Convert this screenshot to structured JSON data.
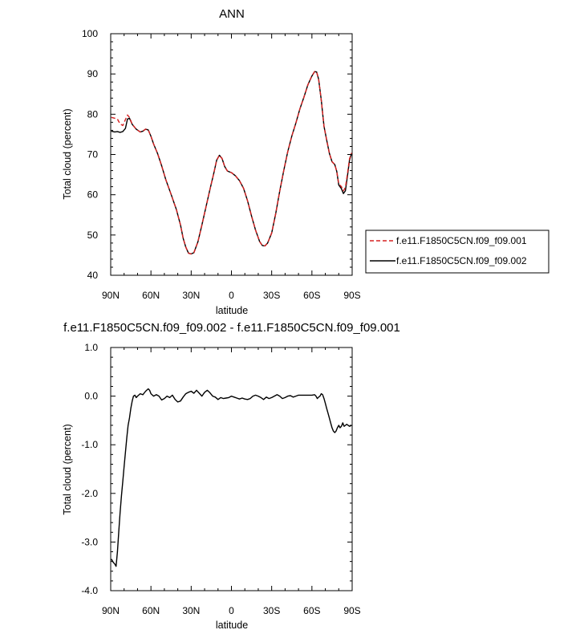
{
  "chart_data": [
    {
      "type": "line",
      "title": "ANN",
      "xlabel": "latitude",
      "ylabel": "Total cloud (percent)",
      "xlim": [
        90,
        -90
      ],
      "ylim": [
        40,
        100
      ],
      "x_ticks": [
        90,
        60,
        30,
        0,
        -30,
        -60,
        -90
      ],
      "x_tick_labels": [
        "90N",
        "60N",
        "30N",
        "0",
        "30S",
        "60S",
        "90S"
      ],
      "y_ticks": [
        40,
        50,
        60,
        70,
        80,
        90,
        100
      ],
      "y_tick_labels": [
        "40",
        "50",
        "60",
        "70",
        "80",
        "90",
        "100"
      ],
      "legend_position": "right",
      "series": [
        {
          "name": "f.e11.F1850C5CN.f09_f09.001",
          "color": "#d62020",
          "dash": "dashed",
          "points": [
            [
              89.5,
              79.2
            ],
            [
              87,
              79.0
            ],
            [
              85,
              78.8
            ],
            [
              83,
              77.6
            ],
            [
              81,
              77.2
            ],
            [
              79,
              78.7
            ],
            [
              77.5,
              79.8
            ],
            [
              76,
              79.2
            ],
            [
              74,
              77.5
            ],
            [
              71,
              76.3
            ],
            [
              68,
              75.6
            ],
            [
              66,
              75.8
            ],
            [
              64,
              76.3
            ],
            [
              62,
              76.1
            ],
            [
              60,
              74.5
            ],
            [
              58,
              72.6
            ],
            [
              55,
              70.2
            ],
            [
              52,
              67.2
            ],
            [
              49,
              63.8
            ],
            [
              45,
              60.1
            ],
            [
              41,
              56.3
            ],
            [
              38,
              52.5
            ],
            [
              36,
              49.2
            ],
            [
              34,
              47.0
            ],
            [
              32,
              45.5
            ],
            [
              30,
              45.3
            ],
            [
              28,
              45.6
            ],
            [
              25,
              48.3
            ],
            [
              22,
              52.5
            ],
            [
              19,
              56.9
            ],
            [
              16,
              61.3
            ],
            [
              13,
              65.6
            ],
            [
              11,
              68.6
            ],
            [
              9,
              69.8
            ],
            [
              7,
              69.0
            ],
            [
              5,
              67.0
            ],
            [
              3,
              65.9
            ],
            [
              0,
              65.5
            ],
            [
              -3,
              64.7
            ],
            [
              -6,
              63.5
            ],
            [
              -9,
              61.6
            ],
            [
              -12,
              58.5
            ],
            [
              -15,
              54.7
            ],
            [
              -18,
              51.2
            ],
            [
              -21,
              48.4
            ],
            [
              -23,
              47.4
            ],
            [
              -25,
              47.3
            ],
            [
              -27,
              48.0
            ],
            [
              -30,
              50.5
            ],
            [
              -33,
              55.3
            ],
            [
              -36,
              60.9
            ],
            [
              -39,
              66.0
            ],
            [
              -42,
              70.7
            ],
            [
              -45,
              74.6
            ],
            [
              -48,
              77.8
            ],
            [
              -51,
              81.3
            ],
            [
              -54,
              84.2
            ],
            [
              -57,
              87.3
            ],
            [
              -60,
              89.5
            ],
            [
              -62,
              90.6
            ],
            [
              -63.5,
              90.5
            ],
            [
              -65,
              88.7
            ],
            [
              -67,
              83.5
            ],
            [
              -69,
              77.0
            ],
            [
              -71,
              73.6
            ],
            [
              -73,
              70.3
            ],
            [
              -75,
              68.2
            ],
            [
              -77,
              67.5
            ],
            [
              -78.5,
              65.8
            ],
            [
              -80,
              62.7
            ],
            [
              -82,
              62.0
            ],
            [
              -83.5,
              61.0
            ],
            [
              -85,
              61.8
            ],
            [
              -86.5,
              65.2
            ],
            [
              -88,
              68.9
            ],
            [
              -89.5,
              70.4
            ]
          ]
        },
        {
          "name": "f.e11.F1850C5CN.f09_f09.002",
          "color": "#000000",
          "dash": "solid",
          "points": [
            [
              89.5,
              75.8
            ],
            [
              87,
              75.6
            ],
            [
              85,
              75.7
            ],
            [
              83,
              75.5
            ],
            [
              81,
              75.7
            ],
            [
              79,
              76.5
            ],
            [
              77.5,
              78.8
            ],
            [
              76,
              79.0
            ],
            [
              74,
              77.5
            ],
            [
              71,
              76.3
            ],
            [
              68,
              75.6
            ],
            [
              66,
              75.8
            ],
            [
              64,
              76.3
            ],
            [
              62,
              76.1
            ],
            [
              60,
              74.5
            ],
            [
              58,
              72.6
            ],
            [
              55,
              70.2
            ],
            [
              52,
              67.2
            ],
            [
              49,
              63.8
            ],
            [
              45,
              60.1
            ],
            [
              41,
              56.3
            ],
            [
              38,
              52.5
            ],
            [
              36,
              49.2
            ],
            [
              34,
              47.0
            ],
            [
              32,
              45.5
            ],
            [
              30,
              45.3
            ],
            [
              28,
              45.6
            ],
            [
              25,
              48.3
            ],
            [
              22,
              52.5
            ],
            [
              19,
              56.9
            ],
            [
              16,
              61.3
            ],
            [
              13,
              65.6
            ],
            [
              11,
              68.6
            ],
            [
              9,
              69.8
            ],
            [
              7,
              69.0
            ],
            [
              5,
              67.0
            ],
            [
              3,
              65.9
            ],
            [
              0,
              65.5
            ],
            [
              -3,
              64.7
            ],
            [
              -6,
              63.5
            ],
            [
              -9,
              61.6
            ],
            [
              -12,
              58.5
            ],
            [
              -15,
              54.7
            ],
            [
              -18,
              51.2
            ],
            [
              -21,
              48.4
            ],
            [
              -23,
              47.4
            ],
            [
              -25,
              47.3
            ],
            [
              -27,
              48.0
            ],
            [
              -30,
              50.5
            ],
            [
              -33,
              55.3
            ],
            [
              -36,
              60.9
            ],
            [
              -39,
              66.0
            ],
            [
              -42,
              70.7
            ],
            [
              -45,
              74.6
            ],
            [
              -48,
              77.8
            ],
            [
              -51,
              81.3
            ],
            [
              -54,
              84.2
            ],
            [
              -57,
              87.3
            ],
            [
              -60,
              89.5
            ],
            [
              -62,
              90.6
            ],
            [
              -63.5,
              90.5
            ],
            [
              -65,
              88.7
            ],
            [
              -67,
              83.5
            ],
            [
              -69,
              77.0
            ],
            [
              -71,
              73.6
            ],
            [
              -73,
              70.3
            ],
            [
              -75,
              68.2
            ],
            [
              -77,
              67.5
            ],
            [
              -78.5,
              65.8
            ],
            [
              -80,
              62.4
            ],
            [
              -82,
              61.5
            ],
            [
              -83.5,
              60.3
            ],
            [
              -85,
              61.0
            ],
            [
              -86.5,
              64.6
            ],
            [
              -88,
              68.6
            ],
            [
              -89.5,
              70.2
            ]
          ]
        }
      ]
    },
    {
      "type": "line",
      "title": "f.e11.F1850C5CN.f09_f09.002 - f.e11.F1850C5CN.f09_f09.001",
      "xlabel": "latitude",
      "ylabel": "Total cloud (percent)",
      "xlim": [
        90,
        -90
      ],
      "ylim": [
        -4,
        1
      ],
      "x_ticks": [
        90,
        60,
        30,
        0,
        -30,
        -60,
        -90
      ],
      "x_tick_labels": [
        "90N",
        "60N",
        "30N",
        "0",
        "30S",
        "60S",
        "90S"
      ],
      "y_ticks": [
        -4,
        -3,
        -2,
        -1,
        0,
        1
      ],
      "y_tick_labels": [
        "-4.0",
        "-3.0",
        "-2.0",
        "-1.0",
        "0.0",
        "1.0"
      ],
      "series": [
        {
          "color": "#000000",
          "dash": "solid",
          "points": [
            [
              89.5,
              -3.35
            ],
            [
              88,
              -3.42
            ],
            [
              87,
              -3.45
            ],
            [
              86,
              -3.5
            ],
            [
              85,
              -3.2
            ],
            [
              84,
              -2.8
            ],
            [
              83,
              -2.4
            ],
            [
              82,
              -2.05
            ],
            [
              81,
              -1.75
            ],
            [
              80,
              -1.45
            ],
            [
              79,
              -1.15
            ],
            [
              78,
              -0.85
            ],
            [
              77,
              -0.6
            ],
            [
              76,
              -0.45
            ],
            [
              75,
              -0.25
            ],
            [
              74,
              -0.1
            ],
            [
              73,
              0.0
            ],
            [
              72,
              0.02
            ],
            [
              71,
              -0.03
            ],
            [
              70,
              0.0
            ],
            [
              68,
              0.05
            ],
            [
              66,
              0.03
            ],
            [
              64,
              0.1
            ],
            [
              62,
              0.15
            ],
            [
              61,
              0.12
            ],
            [
              60,
              0.05
            ],
            [
              58,
              0.0
            ],
            [
              56,
              0.03
            ],
            [
              54,
              0.0
            ],
            [
              52,
              -0.08
            ],
            [
              50,
              -0.05
            ],
            [
              48,
              0.0
            ],
            [
              46,
              -0.03
            ],
            [
              44,
              0.02
            ],
            [
              42,
              -0.07
            ],
            [
              40,
              -0.12
            ],
            [
              38,
              -0.1
            ],
            [
              36,
              -0.02
            ],
            [
              34,
              0.05
            ],
            [
              32,
              0.08
            ],
            [
              30,
              0.1
            ],
            [
              28,
              0.06
            ],
            [
              26,
              0.12
            ],
            [
              24,
              0.06
            ],
            [
              22,
              0.0
            ],
            [
              20,
              0.08
            ],
            [
              18,
              0.12
            ],
            [
              16,
              0.07
            ],
            [
              14,
              0.0
            ],
            [
              12,
              -0.02
            ],
            [
              10,
              -0.07
            ],
            [
              8,
              -0.03
            ],
            [
              6,
              -0.05
            ],
            [
              4,
              -0.04
            ],
            [
              2,
              -0.03
            ],
            [
              0,
              0.0
            ],
            [
              -2,
              -0.02
            ],
            [
              -4,
              -0.04
            ],
            [
              -6,
              -0.06
            ],
            [
              -8,
              -0.04
            ],
            [
              -10,
              -0.06
            ],
            [
              -12,
              -0.07
            ],
            [
              -14,
              -0.05
            ],
            [
              -16,
              0.0
            ],
            [
              -18,
              0.02
            ],
            [
              -20,
              0.0
            ],
            [
              -22,
              -0.03
            ],
            [
              -24,
              -0.07
            ],
            [
              -26,
              -0.02
            ],
            [
              -28,
              -0.05
            ],
            [
              -30,
              -0.03
            ],
            [
              -32,
              0.0
            ],
            [
              -34,
              0.03
            ],
            [
              -36,
              0.0
            ],
            [
              -38,
              -0.05
            ],
            [
              -40,
              -0.03
            ],
            [
              -42,
              0.0
            ],
            [
              -44,
              0.01
            ],
            [
              -46,
              -0.02
            ],
            [
              -48,
              0.0
            ],
            [
              -50,
              0.02
            ],
            [
              -52,
              0.02
            ],
            [
              -54,
              0.02
            ],
            [
              -56,
              0.02
            ],
            [
              -58,
              0.02
            ],
            [
              -60,
              0.02
            ],
            [
              -62,
              0.03
            ],
            [
              -63,
              0.0
            ],
            [
              -64,
              -0.05
            ],
            [
              -65,
              -0.02
            ],
            [
              -66,
              0.0
            ],
            [
              -67,
              0.05
            ],
            [
              -68,
              0.03
            ],
            [
              -69,
              -0.05
            ],
            [
              -70,
              -0.15
            ],
            [
              -71,
              -0.25
            ],
            [
              -72,
              -0.35
            ],
            [
              -73,
              -0.45
            ],
            [
              -74,
              -0.55
            ],
            [
              -75,
              -0.65
            ],
            [
              -76,
              -0.72
            ],
            [
              -77,
              -0.75
            ],
            [
              -78,
              -0.72
            ],
            [
              -79,
              -0.65
            ],
            [
              -80,
              -0.6
            ],
            [
              -81,
              -0.65
            ],
            [
              -82,
              -0.62
            ],
            [
              -83,
              -0.55
            ],
            [
              -84,
              -0.62
            ],
            [
              -85,
              -0.6
            ],
            [
              -86,
              -0.58
            ],
            [
              -87,
              -0.6
            ],
            [
              -88,
              -0.62
            ],
            [
              -89.5,
              -0.6
            ]
          ]
        }
      ]
    }
  ]
}
